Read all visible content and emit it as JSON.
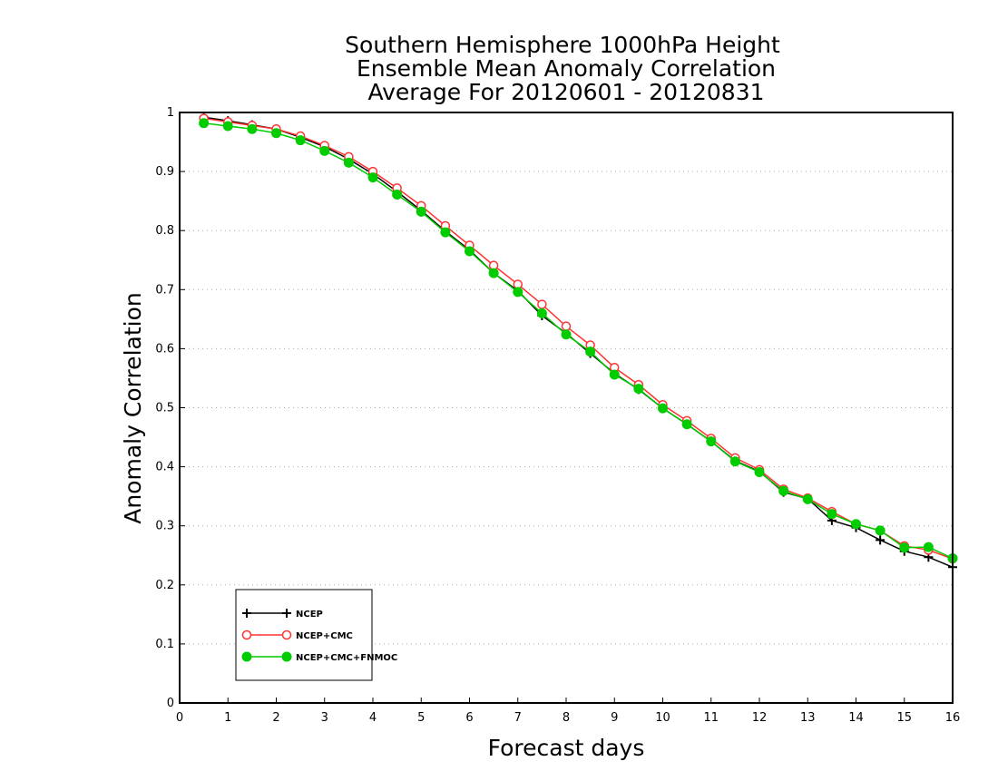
{
  "chart_data": {
    "type": "line",
    "title_lines": [
      "Southern Hemisphere 1000hPa Height",
      "Ensemble Mean Anomaly Correlation",
      "Average For 20120601 - 20120831"
    ],
    "xlabel": "Forecast days",
    "ylabel": "Anomaly Correlation",
    "xlim": [
      0,
      16
    ],
    "ylim": [
      0,
      1
    ],
    "x_ticks": [
      "0",
      "1",
      "2",
      "3",
      "4",
      "5",
      "6",
      "7",
      "8",
      "9",
      "10",
      "11",
      "12",
      "13",
      "14",
      "15",
      "16"
    ],
    "y_ticks": [
      "0",
      "0.1",
      "0.2",
      "0.3",
      "0.4",
      "0.5",
      "0.6",
      "0.7",
      "0.8",
      "0.9",
      "1"
    ],
    "grid": "horizontal dotted",
    "legend_position": "bottom-left",
    "x": [
      0.5,
      1,
      1.5,
      2,
      2.5,
      3,
      3.5,
      4,
      4.5,
      5,
      5.5,
      6,
      6.5,
      7,
      7.5,
      8,
      8.5,
      9,
      9.5,
      10,
      10.5,
      11,
      11.5,
      12,
      12.5,
      13,
      13.5,
      14,
      14.5,
      15,
      15.5,
      16
    ],
    "series": [
      {
        "name": "NCEP",
        "color": "#000000",
        "marker": "plus",
        "values": [
          0.992,
          0.986,
          0.979,
          0.972,
          0.958,
          0.942,
          0.921,
          0.896,
          0.866,
          0.834,
          0.799,
          0.767,
          0.728,
          0.698,
          0.656,
          0.626,
          0.592,
          0.558,
          0.531,
          0.499,
          0.472,
          0.443,
          0.41,
          0.392,
          0.357,
          0.346,
          0.309,
          0.297,
          0.276,
          0.257,
          0.247,
          0.23
        ]
      },
      {
        "name": "NCEP+CMC",
        "color": "#ff3333",
        "marker": "open-circle",
        "values": [
          0.99,
          0.984,
          0.978,
          0.972,
          0.96,
          0.944,
          0.925,
          0.9,
          0.872,
          0.842,
          0.808,
          0.775,
          0.741,
          0.709,
          0.675,
          0.638,
          0.606,
          0.568,
          0.539,
          0.505,
          0.478,
          0.448,
          0.415,
          0.395,
          0.362,
          0.347,
          0.324,
          0.303,
          0.292,
          0.266,
          0.259,
          0.244
        ]
      },
      {
        "name": "NCEP+CMC+FNMOC",
        "color": "#00cc00",
        "marker": "filled-circle",
        "values": [
          0.982,
          0.977,
          0.972,
          0.965,
          0.953,
          0.935,
          0.915,
          0.89,
          0.861,
          0.832,
          0.797,
          0.765,
          0.728,
          0.696,
          0.66,
          0.624,
          0.595,
          0.556,
          0.532,
          0.499,
          0.472,
          0.443,
          0.409,
          0.391,
          0.359,
          0.345,
          0.32,
          0.303,
          0.292,
          0.263,
          0.264,
          0.245
        ]
      }
    ]
  }
}
